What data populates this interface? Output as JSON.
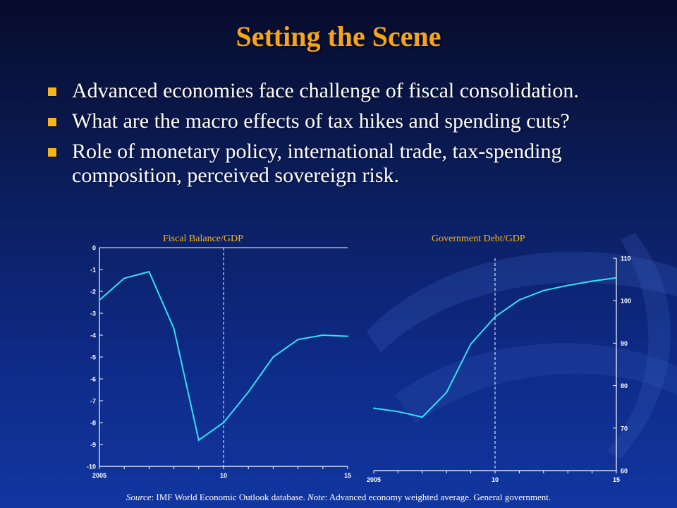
{
  "slide": {
    "title": "Setting the Scene",
    "bullets": [
      "Advanced economies face challenge of fiscal consolidation.",
      "What are the macro effects of tax hikes and spending cuts?",
      "Role of monetary policy, international trade, tax-spending composition, perceived sovereign risk."
    ],
    "footnote": {
      "source_label": "Source",
      "source_text": ": IMF World Economic Outlook database.  ",
      "note_label": "Note",
      "note_text": ": Advanced economy weighted average. General government."
    }
  },
  "colors": {
    "title": "#f6a51b",
    "bullet_square": "#f6b51c",
    "chart_title": "#f6b51c",
    "series_line": "#33e0f0",
    "axis": "#ffffff"
  },
  "chart_data": [
    {
      "type": "line",
      "title": "Fiscal Balance/GDP",
      "x": [
        2005,
        2006,
        2007,
        2008,
        2009,
        2010,
        2011,
        2012,
        2013,
        2014,
        2015
      ],
      "series": [
        {
          "values": [
            -2.4,
            -1.4,
            -1.1,
            -3.7,
            -8.8,
            -8.0,
            -6.6,
            -5.0,
            -4.2,
            -4.0,
            -4.05
          ]
        }
      ],
      "xlim": [
        2005,
        2015
      ],
      "ylim": [
        -10,
        0
      ],
      "xtick_labels": [
        "2005",
        "10",
        "15"
      ],
      "ytick_labels": [
        "0",
        "-1",
        "-2",
        "-3",
        "-4",
        "-5",
        "-6",
        "-7",
        "-8",
        "-9",
        "-10"
      ],
      "vline_x": 2010,
      "yaxis_side": "left",
      "grid": false
    },
    {
      "type": "line",
      "title": "Government Debt/GDP",
      "x": [
        2005,
        2006,
        2007,
        2008,
        2009,
        2010,
        2011,
        2012,
        2013,
        2014,
        2015
      ],
      "series": [
        {
          "values": [
            74.7,
            73.9,
            72.6,
            78.4,
            89.8,
            96.2,
            100.2,
            102.4,
            103.6,
            104.6,
            105.4
          ]
        }
      ],
      "xlim": [
        2005,
        2015
      ],
      "ylim": [
        60,
        110
      ],
      "xtick_labels": [
        "2005",
        "10",
        "15"
      ],
      "ytick_labels": [
        "110",
        "100",
        "90",
        "80",
        "70",
        "60"
      ],
      "vline_x": 2010,
      "yaxis_side": "right",
      "grid": false
    }
  ]
}
